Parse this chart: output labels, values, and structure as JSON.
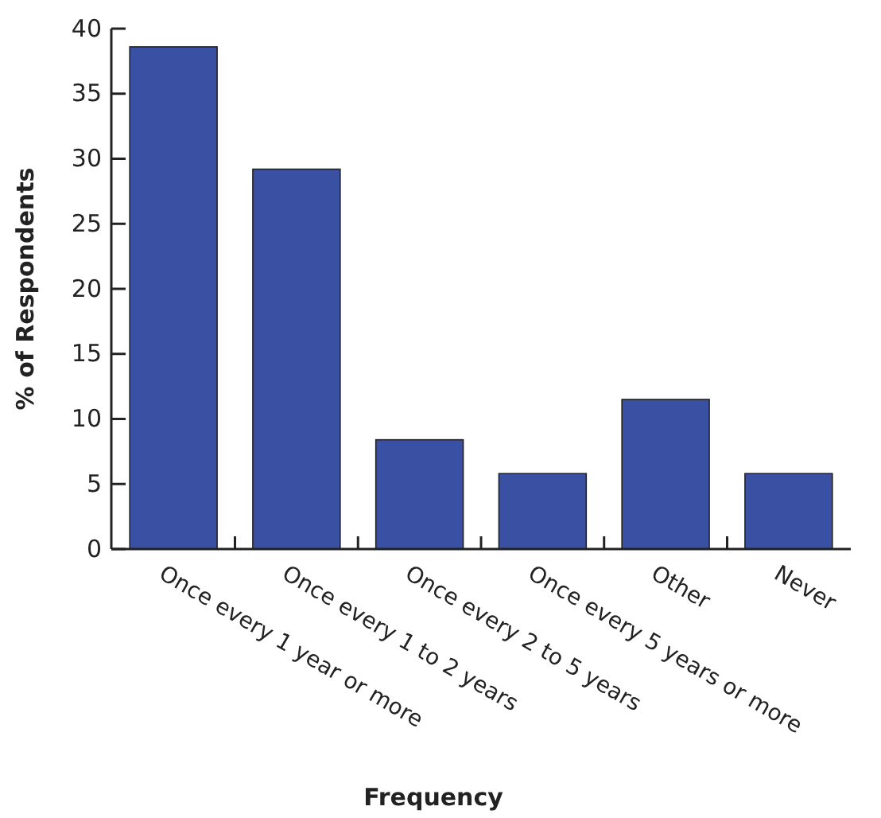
{
  "chart_data": {
    "type": "bar",
    "xlabel": "Frequency",
    "ylabel": "% of Respondents",
    "categories": [
      "Once every 1 year or more",
      "Once every 1 to 2 years",
      "Once every 2 to 5 years",
      "Once every 5 years or more",
      "Other",
      "Never"
    ],
    "values": [
      38.6,
      29.2,
      8.4,
      5.8,
      11.5,
      5.8
    ],
    "color": "#3a50a2",
    "ylim": [
      0,
      40
    ],
    "yticks": [
      0,
      5,
      10,
      15,
      20,
      25,
      30,
      35,
      40
    ],
    "grid": false
  }
}
